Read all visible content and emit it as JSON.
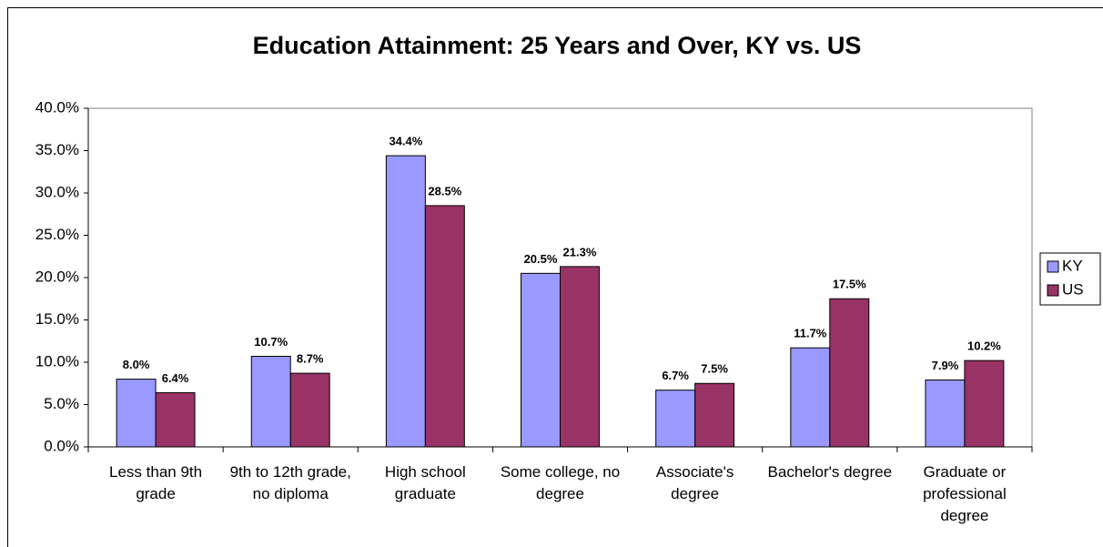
{
  "chart_data": {
    "type": "bar",
    "title": "Education Attainment: 25 Years and Over, KY vs. US",
    "categories": [
      "Less than 9th grade",
      "9th to 12th grade, no diploma",
      "High school graduate",
      "Some college, no degree",
      "Associate's degree",
      "Bachelor's degree",
      "Graduate or professional degree"
    ],
    "series": [
      {
        "name": "KY",
        "color": "#9999ff",
        "values": [
          8.0,
          10.7,
          34.4,
          20.5,
          6.7,
          11.7,
          7.9
        ],
        "value_labels": [
          "8.0%",
          "10.7%",
          "34.4%",
          "20.5%",
          "6.7%",
          "11.7%",
          "7.9%"
        ]
      },
      {
        "name": "US",
        "color": "#993366",
        "values": [
          6.4,
          8.7,
          28.5,
          21.3,
          7.5,
          17.5,
          10.2
        ],
        "value_labels": [
          "6.4%",
          "8.7%",
          "28.5%",
          "21.3%",
          "7.5%",
          "17.5%",
          "10.2%"
        ]
      }
    ],
    "ylim": [
      0,
      40
    ],
    "yticks": [
      {
        "value": 0,
        "label": "0.0%"
      },
      {
        "value": 5,
        "label": "5.0%"
      },
      {
        "value": 10,
        "label": "10.0%"
      },
      {
        "value": 15,
        "label": "15.0%"
      },
      {
        "value": 20,
        "label": "20.0%"
      },
      {
        "value": 25,
        "label": "25.0%"
      },
      {
        "value": 30,
        "label": "30.0%"
      },
      {
        "value": 35,
        "label": "35.0%"
      },
      {
        "value": 40,
        "label": "40.0%"
      }
    ],
    "grid": false,
    "legend": "right"
  }
}
